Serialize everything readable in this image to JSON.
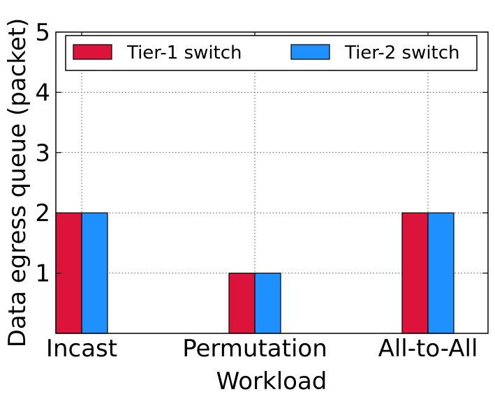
{
  "chart_data": {
    "type": "bar",
    "categories": [
      "Incast",
      "Permutation",
      "All-to-All"
    ],
    "series": [
      {
        "name": "Tier-1 switch",
        "values": [
          2,
          1,
          2
        ],
        "color": "#dc143c"
      },
      {
        "name": "Tier-2 switch",
        "values": [
          2,
          1,
          2
        ],
        "color": "#1e90ff"
      }
    ],
    "xlabel": "Workload",
    "ylabel": "Data egress queue (packet)",
    "ylim": [
      0,
      5
    ],
    "yticks": [
      1,
      2,
      3,
      4,
      5
    ],
    "grid": true,
    "grid_style": "dotted",
    "legend_position": "top",
    "legend_columns": 2
  }
}
